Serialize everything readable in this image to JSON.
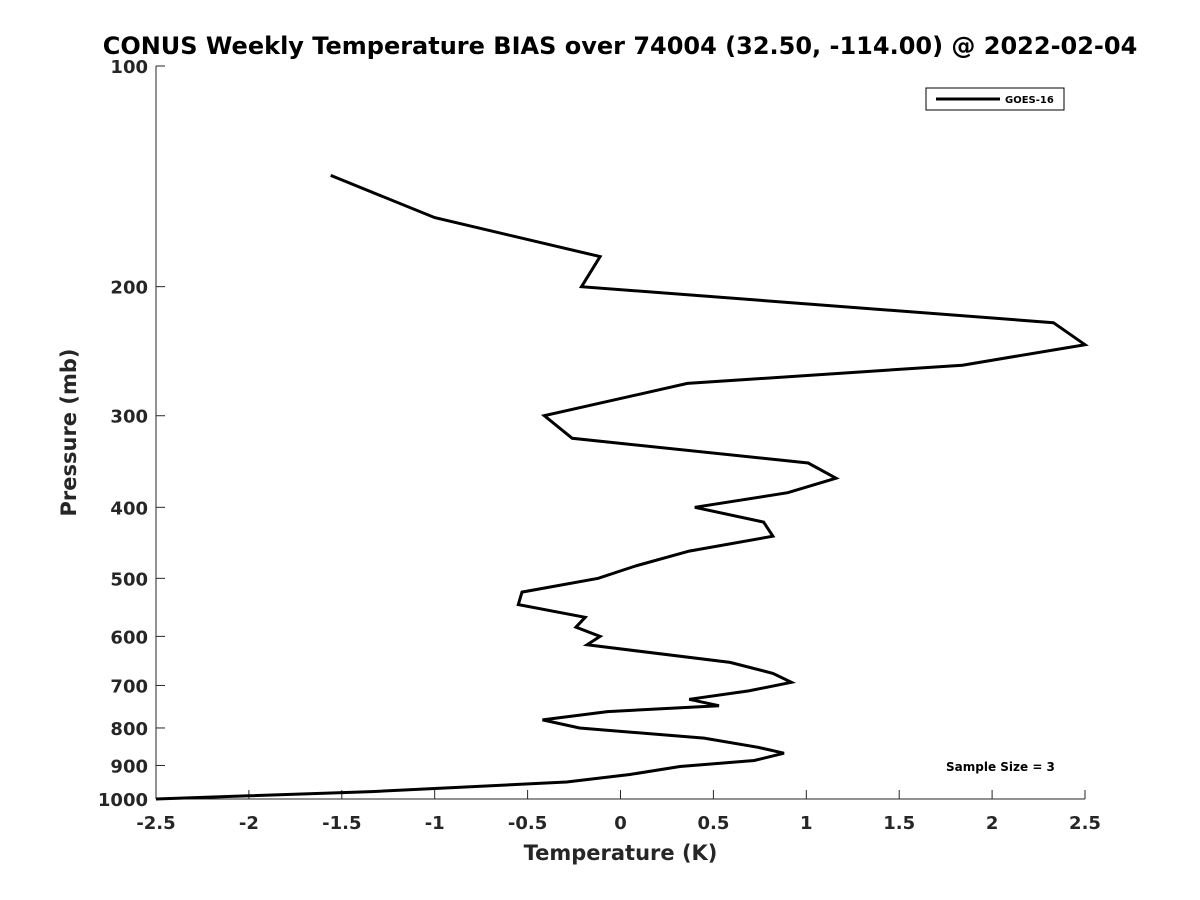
{
  "chart_data": {
    "type": "line",
    "title": "CONUS Weekly Temperature BIAS over 74004 (32.50, -114.00) @ 2022-02-04",
    "xlabel": "Temperature (K)",
    "ylabel": "Pressure (mb)",
    "xlim": [
      -2.5,
      2.5
    ],
    "ylim": [
      100,
      1000
    ],
    "y_scale": "log",
    "y_reversed": true,
    "x_ticks": [
      -2.5,
      -2,
      -1.5,
      -1,
      -0.5,
      0,
      0.5,
      1,
      1.5,
      2,
      2.5
    ],
    "x_tick_labels": [
      "-2.5",
      "-2",
      "-1.5",
      "-1",
      "-0.5",
      "0",
      "0.5",
      "1",
      "1.5",
      "2",
      "2.5"
    ],
    "y_ticks": [
      100,
      200,
      300,
      400,
      500,
      600,
      700,
      800,
      900,
      1000
    ],
    "y_tick_labels": [
      "100",
      "200",
      "300",
      "400",
      "500",
      "600",
      "700",
      "800",
      "900",
      "1000"
    ],
    "grid": false,
    "legend_position": "top-right",
    "line_color": "#000000",
    "series": [
      {
        "name": "GOES-16",
        "points": [
          [
            -1.56,
            141
          ],
          [
            -1.0,
            161
          ],
          [
            -0.11,
            182
          ],
          [
            -0.21,
            200
          ],
          [
            2.33,
            224
          ],
          [
            2.5,
            240
          ],
          [
            1.84,
            256
          ],
          [
            0.36,
            271
          ],
          [
            -0.41,
            300
          ],
          [
            -0.26,
            322
          ],
          [
            1.01,
            348
          ],
          [
            1.16,
            365
          ],
          [
            0.9,
            382
          ],
          [
            0.4,
            400
          ],
          [
            0.77,
            419
          ],
          [
            0.82,
            438
          ],
          [
            0.37,
            459
          ],
          [
            0.08,
            481
          ],
          [
            -0.12,
            500
          ],
          [
            -0.53,
            522
          ],
          [
            -0.55,
            543
          ],
          [
            -0.19,
            565
          ],
          [
            -0.24,
            583
          ],
          [
            -0.11,
            600
          ],
          [
            -0.18,
            616
          ],
          [
            0.59,
            651
          ],
          [
            0.82,
            674
          ],
          [
            0.92,
            693
          ],
          [
            0.69,
            712
          ],
          [
            0.37,
            731
          ],
          [
            0.53,
            746
          ],
          [
            -0.07,
            760
          ],
          [
            -0.42,
            780
          ],
          [
            -0.22,
            800
          ],
          [
            0.45,
            826
          ],
          [
            0.74,
            850
          ],
          [
            0.88,
            866
          ],
          [
            0.72,
            886
          ],
          [
            0.32,
            903
          ],
          [
            0.05,
            926
          ],
          [
            -0.29,
            948
          ],
          [
            -1.34,
            977
          ],
          [
            -2.0,
            990
          ],
          [
            -2.5,
            1000
          ]
        ]
      }
    ],
    "annotation": "Sample Size = 3"
  }
}
